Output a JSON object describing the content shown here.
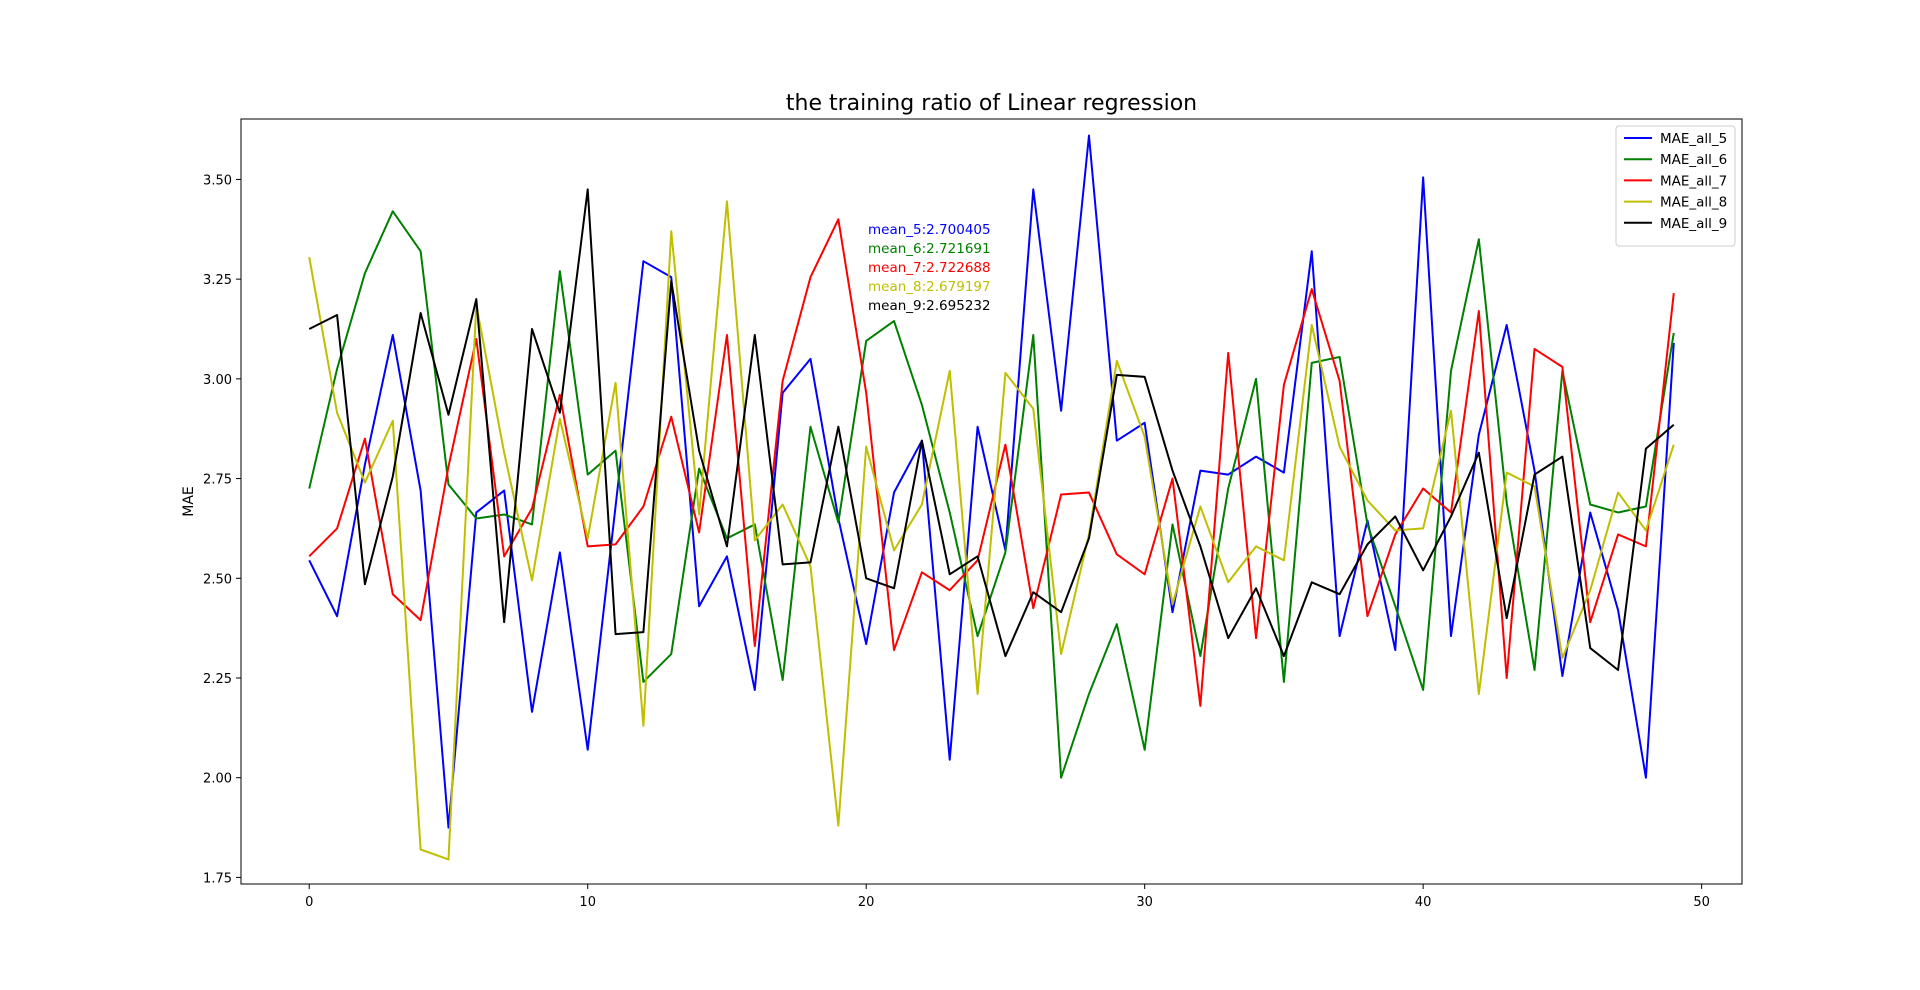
{
  "chart_data": {
    "type": "line",
    "title": "the training ratio of Linear regression",
    "xlabel": "",
    "ylabel": "MAE",
    "xlim": [
      -2.45,
      51.45
    ],
    "ylim": [
      1.7335,
      3.6515
    ],
    "xticks": [
      0,
      10,
      20,
      30,
      40,
      50
    ],
    "xtick_labels": [
      "0",
      "10",
      "20",
      "30",
      "40",
      "50"
    ],
    "yticks": [
      1.75,
      2.0,
      2.25,
      2.5,
      2.75,
      3.0,
      3.25,
      3.5
    ],
    "ytick_labels": [
      "1.75",
      "2.00",
      "2.25",
      "2.50",
      "2.75",
      "3.00",
      "3.25",
      "3.50"
    ],
    "grid": false,
    "legend_position": "top-right",
    "x": [
      0,
      1,
      2,
      3,
      4,
      5,
      6,
      7,
      8,
      9,
      10,
      11,
      12,
      13,
      14,
      15,
      16,
      17,
      18,
      19,
      20,
      21,
      22,
      23,
      24,
      25,
      26,
      27,
      28,
      29,
      30,
      31,
      32,
      33,
      34,
      35,
      36,
      37,
      38,
      39,
      40,
      41,
      42,
      43,
      44,
      45,
      46,
      47,
      48,
      49
    ],
    "series": [
      {
        "name": "MAE_all_5",
        "color": "#0000ff",
        "values": [
          2.545,
          2.405,
          2.785,
          3.11,
          2.72,
          1.875,
          2.665,
          2.72,
          2.165,
          2.565,
          2.07,
          2.68,
          3.295,
          3.255,
          2.43,
          2.555,
          2.22,
          2.965,
          3.05,
          2.65,
          2.335,
          2.715,
          2.845,
          2.045,
          2.88,
          2.57,
          3.475,
          2.92,
          3.61,
          2.845,
          2.89,
          2.415,
          2.77,
          2.76,
          2.805,
          2.765,
          3.32,
          2.355,
          2.645,
          2.32,
          3.505,
          2.355,
          2.86,
          3.135,
          2.77,
          2.255,
          2.665,
          2.42,
          2.0,
          3.09
        ]
      },
      {
        "name": "MAE_all_6",
        "color": "#008000",
        "values": [
          2.725,
          3.025,
          3.265,
          3.42,
          3.32,
          2.735,
          2.65,
          2.66,
          2.635,
          3.27,
          2.76,
          2.82,
          2.24,
          2.31,
          2.775,
          2.6,
          2.635,
          2.245,
          2.88,
          2.64,
          3.095,
          3.145,
          2.935,
          2.665,
          2.355,
          2.565,
          3.11,
          2.0,
          2.21,
          2.385,
          2.07,
          2.635,
          2.305,
          2.725,
          3.0,
          2.24,
          3.04,
          3.055,
          2.635,
          2.43,
          2.22,
          3.02,
          3.35,
          2.69,
          2.27,
          3.02,
          2.685,
          2.665,
          2.68,
          3.115
        ]
      },
      {
        "name": "MAE_all_7",
        "color": "#ff0000",
        "values": [
          2.555,
          2.625,
          2.85,
          2.46,
          2.395,
          2.78,
          3.1,
          2.555,
          2.675,
          2.96,
          2.58,
          2.585,
          2.68,
          2.905,
          2.615,
          3.11,
          2.33,
          2.995,
          3.255,
          3.4,
          2.965,
          2.32,
          2.515,
          2.47,
          2.545,
          2.835,
          2.425,
          2.71,
          2.715,
          2.56,
          2.51,
          2.75,
          2.18,
          3.065,
          2.35,
          2.985,
          3.225,
          2.995,
          2.405,
          2.61,
          2.725,
          2.665,
          3.17,
          2.25,
          3.075,
          3.03,
          2.39,
          2.61,
          2.58,
          3.215
        ]
      },
      {
        "name": "MAE_all_8",
        "color": "#bfbf00",
        "values": [
          3.305,
          2.915,
          2.74,
          2.895,
          1.82,
          1.795,
          3.185,
          2.815,
          2.495,
          2.9,
          2.6,
          2.99,
          2.13,
          3.37,
          2.66,
          3.445,
          2.595,
          2.685,
          2.53,
          1.88,
          2.83,
          2.57,
          2.685,
          3.02,
          2.21,
          3.015,
          2.925,
          2.31,
          2.61,
          3.045,
          2.855,
          2.435,
          2.68,
          2.49,
          2.58,
          2.545,
          3.135,
          2.83,
          2.695,
          2.62,
          2.625,
          2.92,
          2.21,
          2.765,
          2.73,
          2.3,
          2.47,
          2.715,
          2.62,
          2.835
        ]
      },
      {
        "name": "MAE_all_9",
        "color": "#000000",
        "values": [
          3.125,
          3.16,
          2.485,
          2.755,
          3.165,
          2.91,
          3.2,
          2.39,
          3.125,
          2.915,
          3.475,
          2.36,
          2.365,
          3.245,
          2.82,
          2.58,
          3.11,
          2.535,
          2.54,
          2.88,
          2.5,
          2.475,
          2.845,
          2.51,
          2.555,
          2.305,
          2.465,
          2.415,
          2.6,
          3.01,
          3.005,
          2.77,
          2.58,
          2.35,
          2.475,
          2.305,
          2.49,
          2.46,
          2.585,
          2.655,
          2.52,
          2.655,
          2.815,
          2.4,
          2.76,
          2.805,
          2.325,
          2.27,
          2.825,
          2.885
        ]
      }
    ],
    "annotations": [
      {
        "text": "mean_5:2.700405",
        "color": "#0000ff"
      },
      {
        "text": "mean_6:2.721691",
        "color": "#008000"
      },
      {
        "text": "mean_7:2.722688",
        "color": "#ff0000"
      },
      {
        "text": "mean_8:2.679197",
        "color": "#bfbf00"
      },
      {
        "text": "mean_9:2.695232",
        "color": "#000000"
      }
    ]
  }
}
